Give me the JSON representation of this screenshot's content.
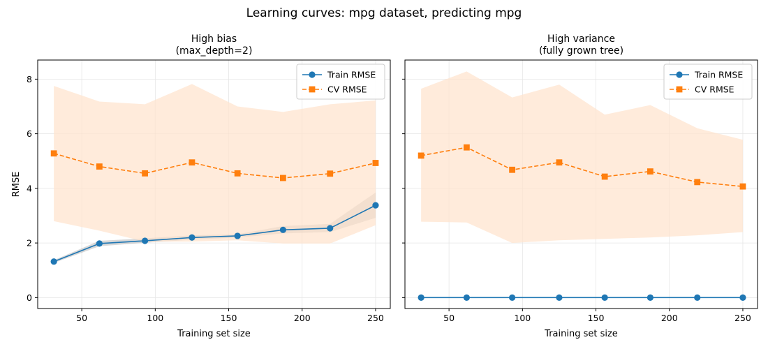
{
  "figure": {
    "suptitle": "Learning curves: mpg dataset, predicting mpg"
  },
  "colors": {
    "train": "#1f77b4",
    "cv": "#ff7f0e",
    "train_band": "#7f7f7f",
    "cv_band": "#ffe3cc",
    "grid": "#e6e6e6",
    "axes": "#000000"
  },
  "chart_data": [
    {
      "type": "line",
      "title_line1": "High bias",
      "title_line2": "(max_depth=2)",
      "xlabel": "Training set size",
      "ylabel": "RMSE",
      "xlim": [
        20,
        260
      ],
      "ylim": [
        -0.4,
        8.7
      ],
      "xticks": [
        50,
        100,
        150,
        200,
        250
      ],
      "yticks": [
        0,
        2,
        4,
        6,
        8
      ],
      "grid": true,
      "legend_position": "upper right",
      "x": [
        31,
        62,
        93,
        125,
        156,
        187,
        219,
        250
      ],
      "series": [
        {
          "name": "Train RMSE",
          "key": "train",
          "marker": "circle",
          "dashed": false,
          "values": [
            1.32,
            1.98,
            2.08,
            2.2,
            2.26,
            2.48,
            2.54,
            3.38
          ],
          "band_lower": [
            1.27,
            1.88,
            2.01,
            2.12,
            2.2,
            2.35,
            2.4,
            2.92
          ],
          "band_upper": [
            1.37,
            2.08,
            2.17,
            2.28,
            2.32,
            2.62,
            2.7,
            3.85
          ]
        },
        {
          "name": "CV RMSE",
          "key": "cv",
          "marker": "square",
          "dashed": true,
          "values": [
            5.28,
            4.8,
            4.55,
            4.95,
            4.55,
            4.38,
            4.54,
            4.93
          ],
          "band_lower": [
            2.8,
            2.45,
            2.05,
            2.05,
            2.1,
            1.98,
            1.98,
            2.65
          ],
          "band_upper": [
            7.75,
            7.18,
            7.08,
            7.82,
            7.0,
            6.8,
            7.08,
            7.22
          ]
        }
      ]
    },
    {
      "type": "line",
      "title_line1": "High variance",
      "title_line2": "(fully grown tree)",
      "xlabel": "Training set size",
      "ylabel": "",
      "xlim": [
        20,
        260
      ],
      "ylim": [
        -0.4,
        8.7
      ],
      "xticks": [
        50,
        100,
        150,
        200,
        250
      ],
      "yticks": [
        0,
        2,
        4,
        6,
        8
      ],
      "grid": true,
      "legend_position": "upper right",
      "x": [
        31,
        62,
        93,
        125,
        156,
        187,
        219,
        250
      ],
      "series": [
        {
          "name": "Train RMSE",
          "key": "train",
          "marker": "circle",
          "dashed": false,
          "values": [
            0,
            0,
            0,
            0,
            0,
            0,
            0,
            0
          ]
        },
        {
          "name": "CV RMSE",
          "key": "cv",
          "marker": "square",
          "dashed": true,
          "values": [
            5.2,
            5.5,
            4.68,
            4.95,
            4.43,
            4.62,
            4.23,
            4.07
          ],
          "band_lower": [
            2.78,
            2.75,
            2.0,
            2.1,
            2.15,
            2.2,
            2.28,
            2.4
          ],
          "band_upper": [
            7.65,
            8.28,
            7.33,
            7.8,
            6.7,
            7.05,
            6.2,
            5.78
          ]
        }
      ]
    }
  ]
}
